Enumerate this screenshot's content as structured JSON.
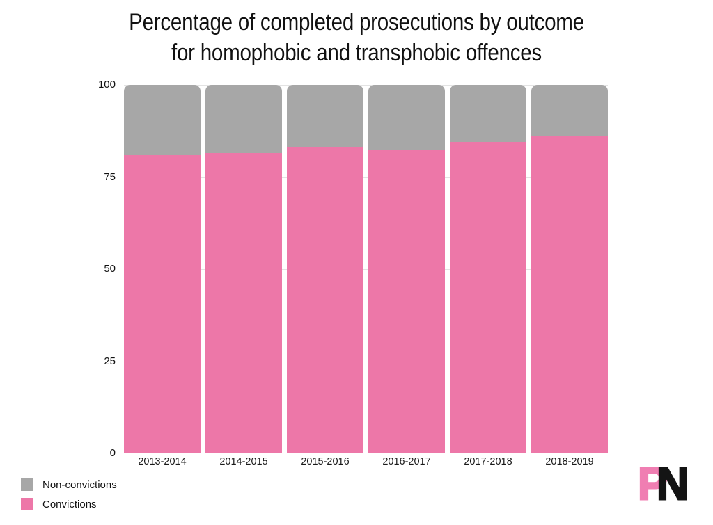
{
  "title": {
    "line1": "Percentage of completed prosecutions by outcome",
    "line2": "for homophobic and transphobic offences"
  },
  "chart_data": {
    "type": "bar",
    "stacked": true,
    "title": "Percentage of completed prosecutions by outcome for homophobic and transphobic offences",
    "categories": [
      "2013-2014",
      "2014-2015",
      "2015-2016",
      "2016-2017",
      "2017-2018",
      "2018-2019"
    ],
    "series": [
      {
        "name": "Convictions",
        "color": "#ED77A8",
        "values": [
          81,
          81.5,
          83,
          82.5,
          84.5,
          86
        ]
      },
      {
        "name": "Non-convictions",
        "color": "#A7A7A7",
        "values": [
          19,
          18.5,
          17,
          17.5,
          15.5,
          14
        ]
      }
    ],
    "xlabel": "",
    "ylabel": "",
    "ylim": [
      0,
      100
    ],
    "yticks": [
      0,
      25,
      50,
      75,
      100
    ],
    "gridline_values": [
      25,
      50,
      75,
      100
    ],
    "grid": true,
    "grid_color": "#e3e3e3",
    "legend_position": "bottom-left"
  },
  "legend": {
    "items": [
      {
        "label": "Non-convictions",
        "color": "#A7A7A7"
      },
      {
        "label": "Convictions",
        "color": "#ED77A8"
      }
    ]
  },
  "logo": {
    "name": "PinkNews",
    "letters": [
      {
        "char": "P",
        "color": "#F07EB2"
      },
      {
        "char": "N",
        "color": "#141414"
      }
    ]
  },
  "colors": {
    "background": "#ffffff",
    "convictions_pink": "#ED77A8",
    "nonconvictions_gray": "#A7A7A7",
    "text": "#111111"
  }
}
